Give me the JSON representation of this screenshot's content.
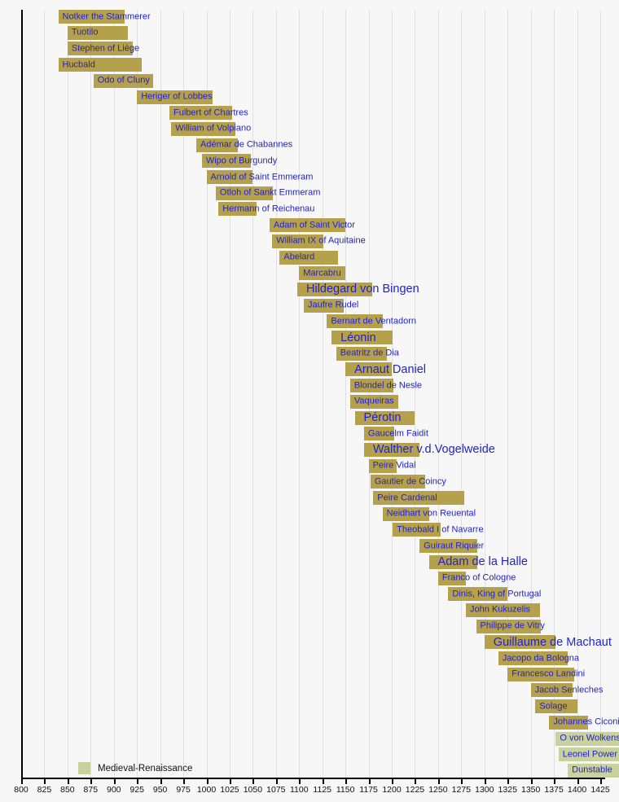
{
  "chart_data": {
    "type": "timeline",
    "description": "Gantt-style lifespan timeline of medieval composers",
    "axis": {
      "min": 800,
      "max": 1425,
      "step": 25,
      "ticks": [
        800,
        825,
        850,
        875,
        900,
        925,
        950,
        975,
        1000,
        1025,
        1050,
        1075,
        1100,
        1125,
        1150,
        1175,
        1200,
        1225,
        1250,
        1275,
        1300,
        1325,
        1350,
        1375,
        1400,
        1425
      ]
    },
    "legend": {
      "label": "Medieval-Renaissance",
      "swatch_color": "#c9d29c"
    },
    "colors": {
      "medieval_bar": "#b5a14b",
      "transition_bar": "#c9d29c",
      "label_text": "#2222cc",
      "background": "#f7f7f7",
      "gridline": "#e0e0e0",
      "axis": "#000000"
    },
    "composers": [
      {
        "name": "Notker the Stammerer",
        "from": 840,
        "till": 912,
        "era": "medieval",
        "emphasis": false
      },
      {
        "name": "Tuotilo",
        "from": 850,
        "till": 915,
        "era": "medieval",
        "emphasis": false
      },
      {
        "name": "Stephen of Liège",
        "from": 850,
        "till": 920,
        "era": "medieval",
        "emphasis": false
      },
      {
        "name": "Hucbald",
        "from": 840,
        "till": 930,
        "era": "medieval",
        "emphasis": false
      },
      {
        "name": "Odo of Cluny",
        "from": 878,
        "till": 942,
        "era": "medieval",
        "emphasis": false
      },
      {
        "name": "Heriger of Lobbes",
        "from": 925,
        "till": 1007,
        "era": "medieval",
        "emphasis": false
      },
      {
        "name": "Fulbert of Chartres",
        "from": 960,
        "till": 1028,
        "era": "medieval",
        "emphasis": false
      },
      {
        "name": "William of Volpiano",
        "from": 962,
        "till": 1031,
        "era": "medieval",
        "emphasis": false
      },
      {
        "name": "Adémar de Chabannes",
        "from": 989,
        "till": 1034,
        "era": "medieval",
        "emphasis": false
      },
      {
        "name": "Wipo of Burgundy",
        "from": 995,
        "till": 1048,
        "era": "medieval",
        "emphasis": false
      },
      {
        "name": "Arnold of Saint Emmeram",
        "from": 1000,
        "till": 1050,
        "era": "medieval",
        "emphasis": false
      },
      {
        "name": "Otloh of Sankt Emmeram",
        "from": 1010,
        "till": 1072,
        "era": "medieval",
        "emphasis": false
      },
      {
        "name": "Hermann of Reichenau",
        "from": 1013,
        "till": 1054,
        "era": "medieval",
        "emphasis": false
      },
      {
        "name": "Adam of Saint Victor",
        "from": 1068,
        "till": 1150,
        "era": "medieval",
        "emphasis": false
      },
      {
        "name": "William IX of Aquitaine",
        "from": 1071,
        "till": 1126,
        "era": "medieval",
        "emphasis": false
      },
      {
        "name": "Abelard",
        "from": 1079,
        "till": 1142,
        "era": "medieval",
        "emphasis": false
      },
      {
        "name": "Marcabru",
        "from": 1100,
        "till": 1150,
        "era": "medieval",
        "emphasis": false
      },
      {
        "name": "Hildegard von Bingen",
        "from": 1098,
        "till": 1179,
        "era": "medieval",
        "emphasis": true
      },
      {
        "name": "Jaufre Rudel",
        "from": 1105,
        "till": 1148,
        "era": "medieval",
        "emphasis": false
      },
      {
        "name": "Bernart de Ventadorn",
        "from": 1130,
        "till": 1190,
        "era": "medieval",
        "emphasis": false
      },
      {
        "name": "Léonin",
        "from": 1135,
        "till": 1201,
        "era": "medieval",
        "emphasis": true
      },
      {
        "name": "Beatritz de Dia",
        "from": 1140,
        "till": 1195,
        "era": "medieval",
        "emphasis": false
      },
      {
        "name": "Arnaut Daniel",
        "from": 1150,
        "till": 1200,
        "era": "medieval",
        "emphasis": true
      },
      {
        "name": "Blondel de Nesle",
        "from": 1155,
        "till": 1202,
        "era": "medieval",
        "emphasis": false
      },
      {
        "name": "Vaqueiras",
        "from": 1155,
        "till": 1207,
        "era": "medieval",
        "emphasis": false
      },
      {
        "name": "Pérotin",
        "from": 1160,
        "till": 1225,
        "era": "medieval",
        "emphasis": true
      },
      {
        "name": "Gaucelm Faidit",
        "from": 1170,
        "till": 1203,
        "era": "medieval",
        "emphasis": false
      },
      {
        "name": "Walther v.d.Vogelweide",
        "from": 1170,
        "till": 1230,
        "era": "medieval",
        "emphasis": true
      },
      {
        "name": "Peire Vidal",
        "from": 1175,
        "till": 1205,
        "era": "medieval",
        "emphasis": false
      },
      {
        "name": "Gautier de Coincy",
        "from": 1177,
        "till": 1236,
        "era": "medieval",
        "emphasis": false
      },
      {
        "name": "Peire Cardenal",
        "from": 1180,
        "till": 1278,
        "era": "medieval",
        "emphasis": false
      },
      {
        "name": "Neidhart von Reuental",
        "from": 1190,
        "till": 1240,
        "era": "medieval",
        "emphasis": false
      },
      {
        "name": "Theobald I of Navarre",
        "from": 1201,
        "till": 1253,
        "era": "medieval",
        "emphasis": false
      },
      {
        "name": "Guiraut Riquier",
        "from": 1230,
        "till": 1292,
        "era": "medieval",
        "emphasis": false
      },
      {
        "name": "Adam de la Halle",
        "from": 1240,
        "till": 1292,
        "era": "medieval",
        "emphasis": true
      },
      {
        "name": "Franco of Cologne",
        "from": 1250,
        "till": 1280,
        "era": "medieval",
        "emphasis": false
      },
      {
        "name": "Dinis, King of Portugal",
        "from": 1261,
        "till": 1325,
        "era": "medieval",
        "emphasis": false
      },
      {
        "name": "John Kukuzelis",
        "from": 1280,
        "till": 1360,
        "era": "medieval",
        "emphasis": false
      },
      {
        "name": "Philippe de Vitry",
        "from": 1291,
        "till": 1361,
        "era": "medieval",
        "emphasis": false
      },
      {
        "name": "Guillaume de Machaut",
        "from": 1300,
        "till": 1377,
        "era": "medieval",
        "emphasis": true
      },
      {
        "name": "Jacopo da Bologna",
        "from": 1315,
        "till": 1390,
        "era": "medieval",
        "emphasis": false
      },
      {
        "name": "Francesco Landini",
        "from": 1325,
        "till": 1397,
        "era": "medieval",
        "emphasis": false
      },
      {
        "name": "Jacob Senleches",
        "from": 1350,
        "till": 1395,
        "era": "medieval",
        "emphasis": false
      },
      {
        "name": "Solage",
        "from": 1355,
        "till": 1400,
        "era": "medieval",
        "emphasis": false
      },
      {
        "name": "Johannes Ciconia",
        "from": 1370,
        "till": 1412,
        "era": "medieval",
        "emphasis": false
      },
      {
        "name": "O von Wolkenstein",
        "from": 1377,
        "till": 1445,
        "era": "medieval-renaissance",
        "emphasis": false
      },
      {
        "name": "Leonel Power",
        "from": 1380,
        "till": 1445,
        "era": "medieval-renaissance",
        "emphasis": false
      },
      {
        "name": "Dunstable",
        "from": 1390,
        "till": 1453,
        "era": "medieval-renaissance",
        "emphasis": false
      }
    ]
  }
}
